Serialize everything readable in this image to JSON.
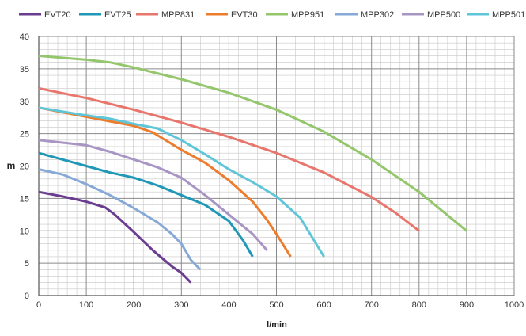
{
  "chart_data": {
    "type": "line",
    "title": "",
    "xlabel": "l/min",
    "ylabel": "m",
    "xlim": [
      0,
      1000
    ],
    "ylim": [
      0,
      40
    ],
    "x_ticks": [
      0,
      100,
      200,
      300,
      400,
      500,
      600,
      700,
      800,
      900,
      1000
    ],
    "y_ticks": [
      0,
      5,
      10,
      15,
      20,
      25,
      30,
      35,
      40
    ],
    "grid": "on (major and minor)",
    "legend_position": "top",
    "series": [
      {
        "name": "EVT20",
        "color": "#6a3d91",
        "points": [
          [
            0,
            16
          ],
          [
            50,
            15.3
          ],
          [
            100,
            14.5
          ],
          [
            140,
            13.6
          ],
          [
            160,
            12.5
          ],
          [
            200,
            9.8
          ],
          [
            240,
            7
          ],
          [
            280,
            4.5
          ],
          [
            300,
            3.5
          ],
          [
            320,
            2
          ]
        ]
      },
      {
        "name": "EVT25",
        "color": "#1f97b7",
        "points": [
          [
            0,
            22
          ],
          [
            50,
            21
          ],
          [
            100,
            20
          ],
          [
            150,
            19
          ],
          [
            200,
            18.2
          ],
          [
            250,
            17
          ],
          [
            300,
            15.5
          ],
          [
            350,
            14
          ],
          [
            400,
            11.5
          ],
          [
            430,
            8.5
          ],
          [
            450,
            6
          ]
        ]
      },
      {
        "name": "MPP831",
        "color": "#e8766c",
        "points": [
          [
            0,
            32
          ],
          [
            100,
            30.5
          ],
          [
            200,
            28.7
          ],
          [
            300,
            26.7
          ],
          [
            400,
            24.5
          ],
          [
            500,
            22
          ],
          [
            600,
            19
          ],
          [
            700,
            15.2
          ],
          [
            750,
            12.8
          ],
          [
            800,
            10
          ]
        ]
      },
      {
        "name": "EVT30",
        "color": "#ed7c2c",
        "points": [
          [
            0,
            29
          ],
          [
            100,
            27.6
          ],
          [
            200,
            26.2
          ],
          [
            240,
            25.2
          ],
          [
            300,
            22.5
          ],
          [
            350,
            20.5
          ],
          [
            400,
            17.8
          ],
          [
            450,
            14.5
          ],
          [
            480,
            11.7
          ],
          [
            500,
            9.5
          ],
          [
            530,
            6
          ]
        ]
      },
      {
        "name": "MPP951",
        "color": "#94c66b",
        "points": [
          [
            0,
            37
          ],
          [
            100,
            36.4
          ],
          [
            150,
            36
          ],
          [
            200,
            35.2
          ],
          [
            300,
            33.4
          ],
          [
            400,
            31.3
          ],
          [
            500,
            28.7
          ],
          [
            600,
            25.3
          ],
          [
            700,
            21
          ],
          [
            800,
            16
          ],
          [
            900,
            10
          ]
        ]
      },
      {
        "name": "MPP302",
        "color": "#86a9d7",
        "points": [
          [
            0,
            19.5
          ],
          [
            50,
            18.7
          ],
          [
            100,
            17.2
          ],
          [
            150,
            15.5
          ],
          [
            200,
            13.5
          ],
          [
            250,
            11.3
          ],
          [
            280,
            9.5
          ],
          [
            300,
            8
          ],
          [
            320,
            5.5
          ],
          [
            340,
            4
          ]
        ]
      },
      {
        "name": "MPP500",
        "color": "#a895c3",
        "points": [
          [
            0,
            24
          ],
          [
            100,
            23.2
          ],
          [
            150,
            22.2
          ],
          [
            200,
            21
          ],
          [
            250,
            19.8
          ],
          [
            300,
            18.2
          ],
          [
            350,
            15.5
          ],
          [
            400,
            12.5
          ],
          [
            450,
            9.5
          ],
          [
            480,
            7
          ]
        ]
      },
      {
        "name": "MPP501",
        "color": "#5ec6d8",
        "points": [
          [
            0,
            29
          ],
          [
            100,
            27.8
          ],
          [
            150,
            27.3
          ],
          [
            200,
            26.5
          ],
          [
            250,
            25.8
          ],
          [
            300,
            24
          ],
          [
            350,
            21.8
          ],
          [
            400,
            19.5
          ],
          [
            450,
            17.5
          ],
          [
            500,
            15.3
          ],
          [
            550,
            12
          ],
          [
            600,
            6
          ]
        ]
      }
    ]
  }
}
